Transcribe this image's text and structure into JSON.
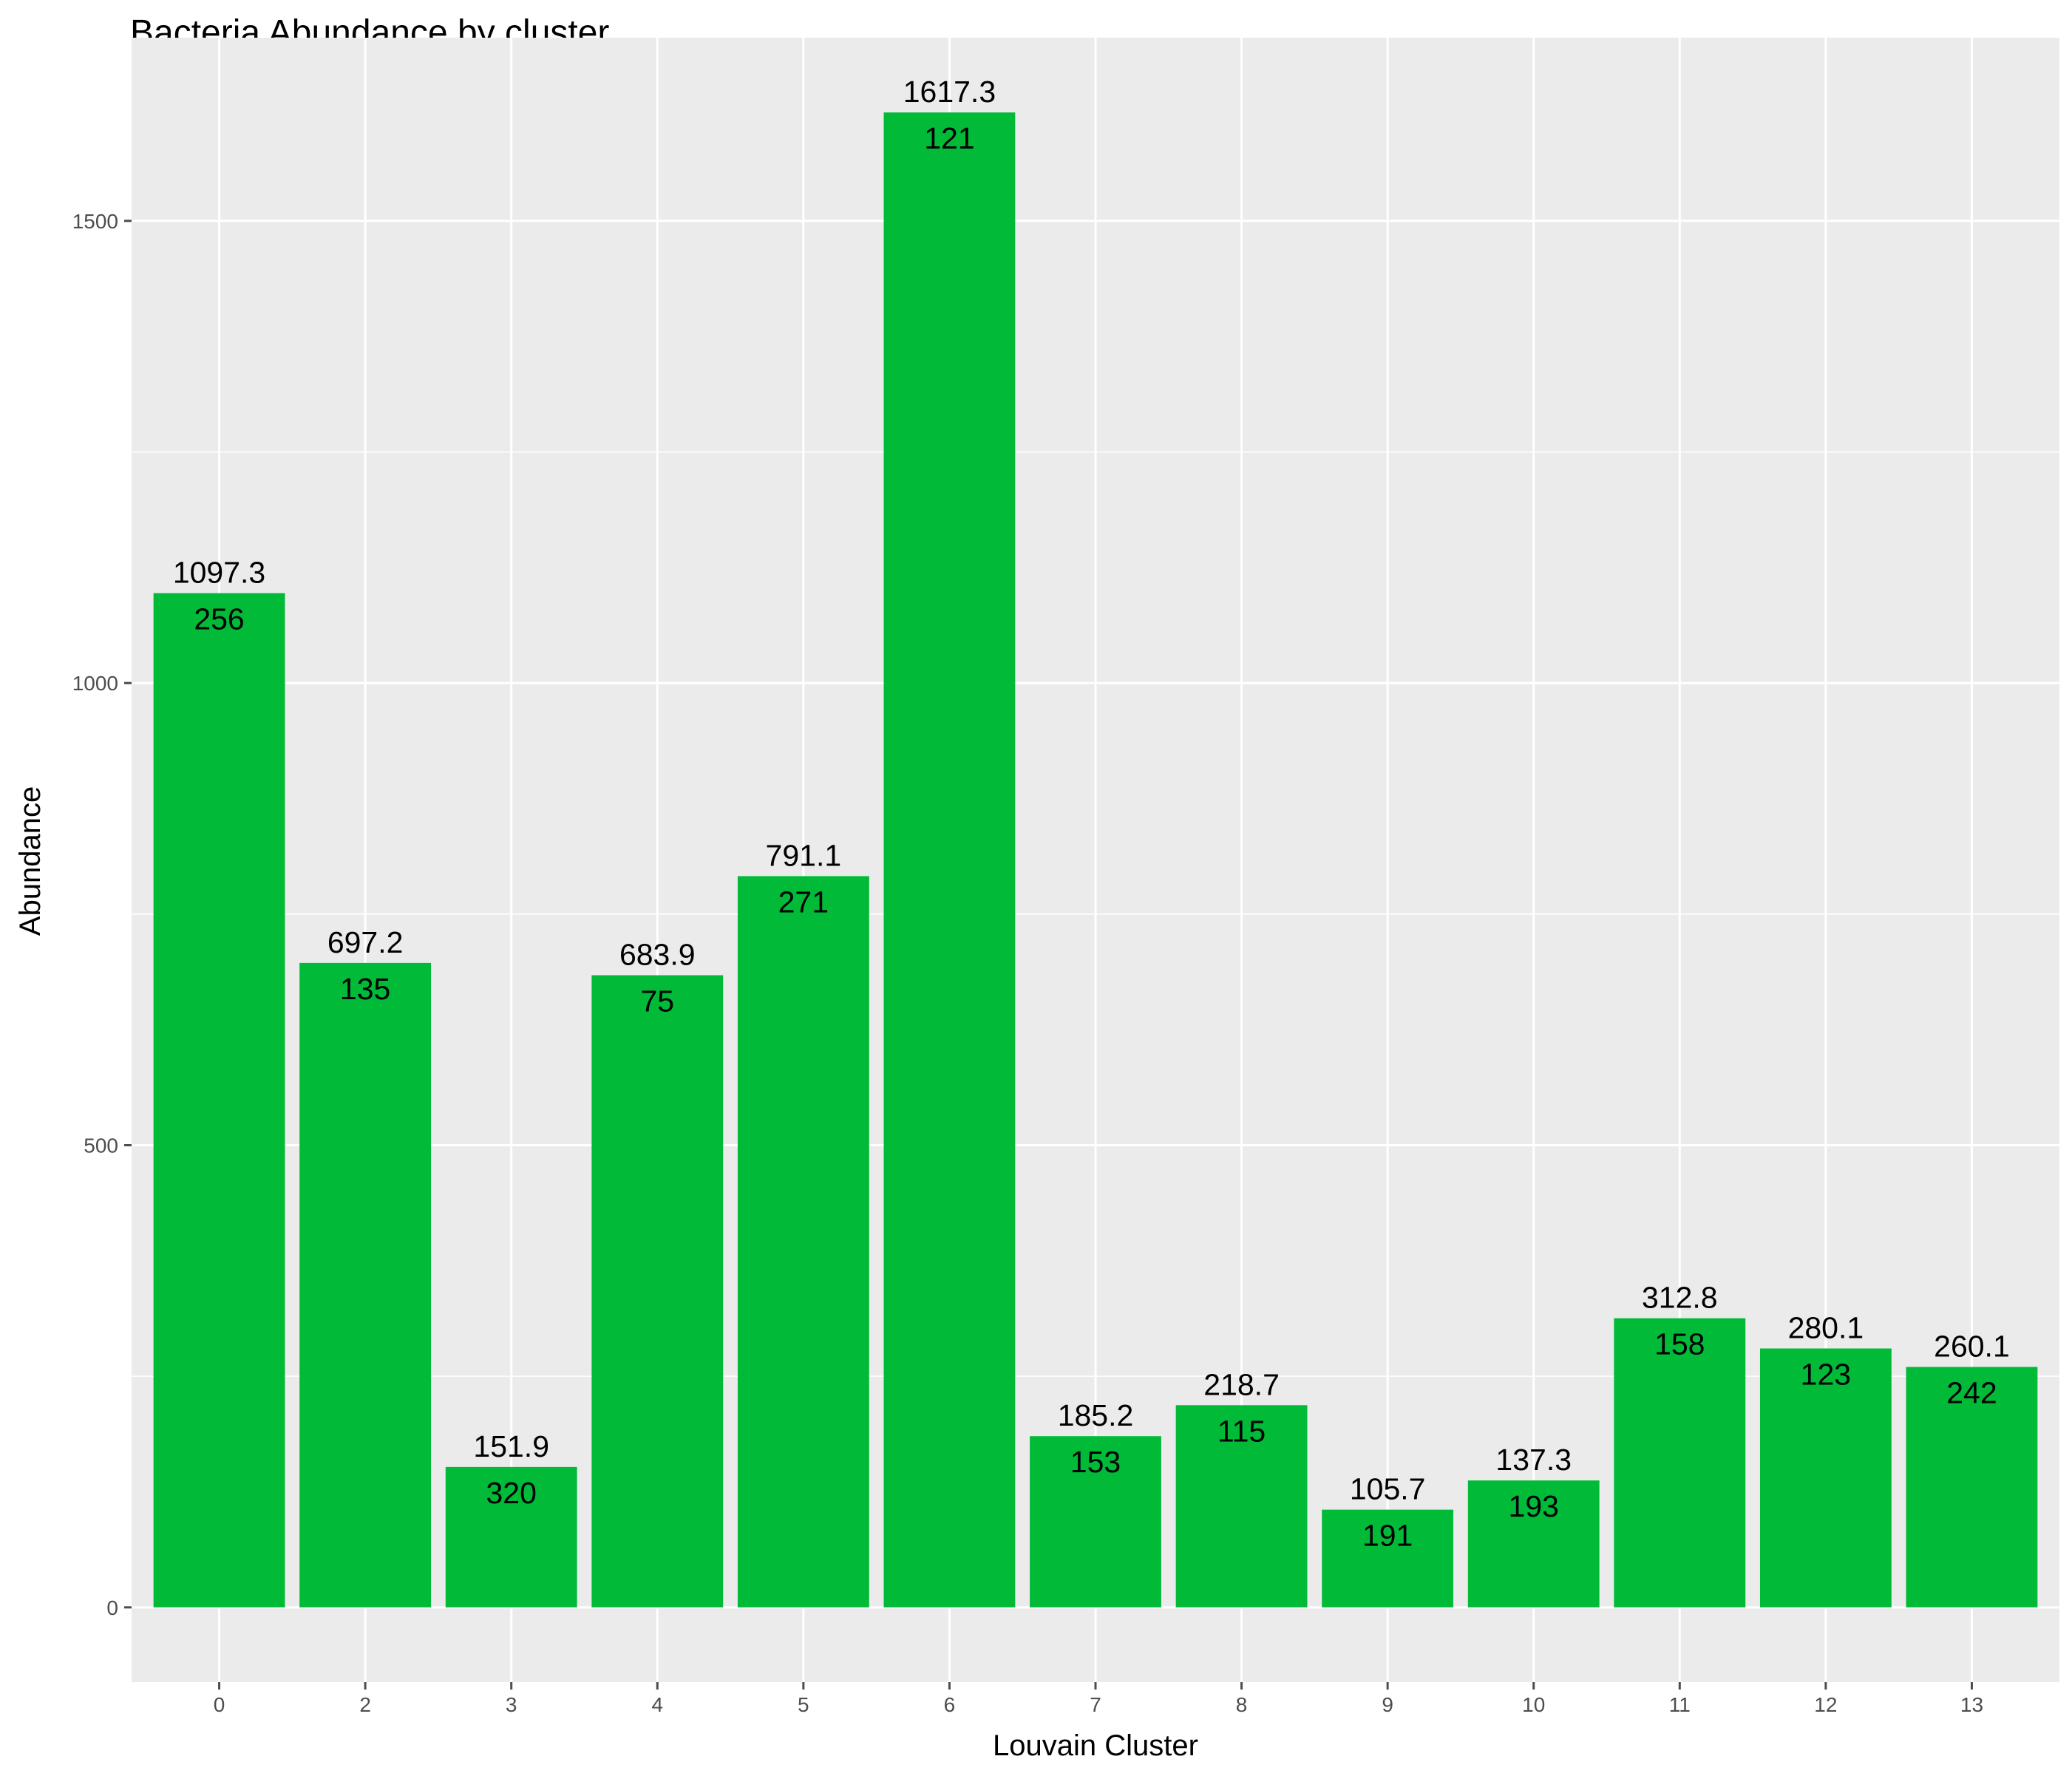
{
  "chart_data": {
    "type": "bar",
    "title": "Bacteria Abundance by cluster",
    "xlabel": "Louvain Cluster",
    "ylabel": "Abundance",
    "categories": [
      "0",
      "2",
      "3",
      "4",
      "5",
      "6",
      "7",
      "8",
      "9",
      "10",
      "11",
      "12",
      "13"
    ],
    "values": [
      1097.3,
      697.2,
      151.9,
      683.9,
      791.1,
      1617.3,
      185.2,
      218.7,
      105.7,
      137.3,
      312.8,
      280.1,
      260.1
    ],
    "value_labels": [
      "1097.3",
      "697.2",
      "151.9",
      "683.9",
      "791.1",
      "1617.3",
      "185.2",
      "218.7",
      "105.7",
      "137.3",
      "312.8",
      "280.1",
      "260.1"
    ],
    "counts": [
      "256",
      "135",
      "320",
      "75",
      "271",
      "121",
      "153",
      "115",
      "191",
      "193",
      "158",
      "123",
      "242"
    ],
    "yticks": [
      0,
      500,
      1000,
      1500
    ],
    "ytick_labels": [
      "0",
      "500",
      "1000",
      "1500"
    ],
    "ylim": [
      -80.9,
      1698.2
    ],
    "grid": true,
    "legend": "none",
    "colors": {
      "bar": "#00BA38",
      "panel": "#EBEBEB",
      "grid": "#FFFFFF",
      "tick": "#4D4D4D",
      "text": "#000000"
    }
  }
}
